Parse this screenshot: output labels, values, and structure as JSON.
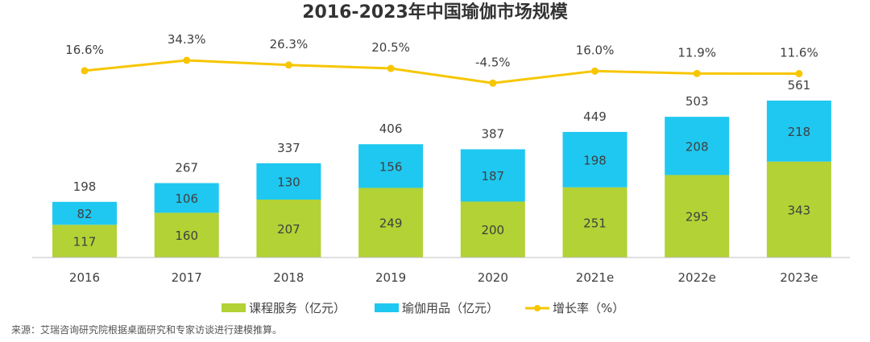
{
  "chart_data": {
    "type": "bar",
    "stacked": true,
    "title": "2016-2023年中国瑜伽市场规模",
    "categories": [
      "2016",
      "2017",
      "2018",
      "2019",
      "2020",
      "2021e",
      "2022e",
      "2023e"
    ],
    "series": [
      {
        "name": "课程服务（亿元）",
        "color": "#b2d235",
        "values": [
          117,
          160,
          207,
          249,
          200,
          251,
          295,
          343
        ]
      },
      {
        "name": "瑜伽用品（亿元）",
        "color": "#1fc8f0",
        "values": [
          82,
          106,
          130,
          156,
          187,
          198,
          208,
          218
        ]
      }
    ],
    "totals": [
      198,
      267,
      337,
      406,
      387,
      449,
      503,
      561
    ],
    "line_series": {
      "name": "增长率（%）",
      "color": "#f7c600",
      "values": [
        16.6,
        34.3,
        26.3,
        20.5,
        -4.5,
        16.0,
        11.9,
        11.6
      ],
      "labels": [
        "16.6%",
        "34.3%",
        "26.3%",
        "20.5%",
        "-4.5%",
        "16.0%",
        "11.9%",
        "11.6%"
      ]
    },
    "legend": "bottom",
    "grid": false
  },
  "source": "来源：艾瑞咨询研究院根据桌面研究和专家访谈进行建模推算。"
}
